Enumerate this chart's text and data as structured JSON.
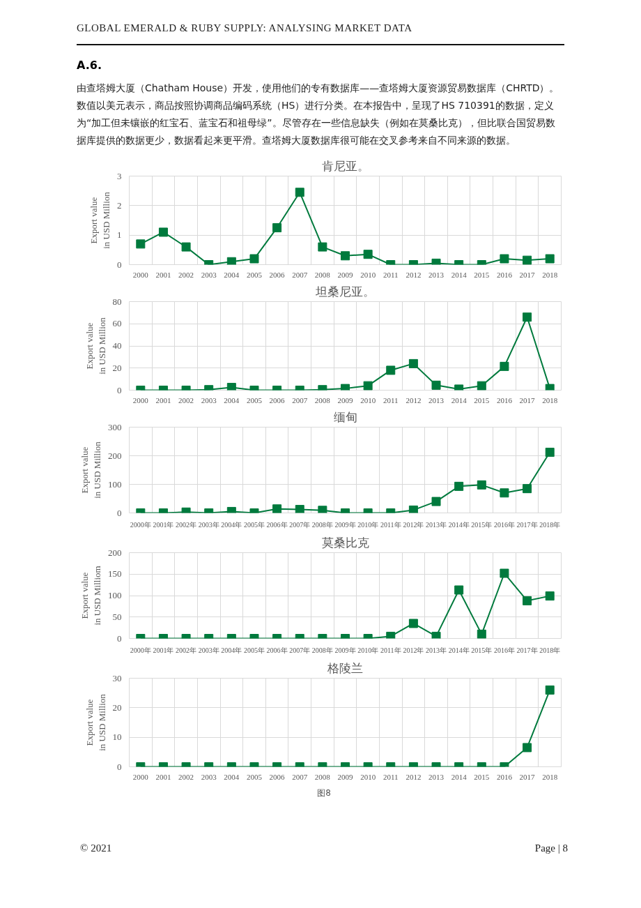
{
  "chart_data": [
    {
      "type": "line",
      "title": "肯尼亚。",
      "ylabel": "Export value in USD Million",
      "categories": [
        "2000",
        "2001",
        "2002",
        "2003",
        "2004",
        "2005",
        "2006",
        "2007",
        "2008",
        "2009",
        "2010",
        "2011",
        "2012",
        "2013",
        "2014",
        "2015",
        "2016",
        "2017",
        "2018"
      ],
      "series": [
        {
          "color": "#007a3d",
          "values": [
            0.7,
            1.1,
            0.6,
            0,
            0.1,
            0.2,
            1.25,
            2.45,
            0.6,
            0.3,
            0.35,
            0,
            0,
            0.05,
            0,
            0,
            0.2,
            0.15,
            0.2
          ]
        }
      ],
      "ylim": [
        0,
        3
      ],
      "yticks": [
        0,
        1,
        2,
        3
      ],
      "grid": true,
      "marker": "square",
      "line_style": "solid",
      "annotations": [
        "GLOBAL EMERALD & RUBY SUPPLY: ANALYSING MARKET DATA",
        "A.6.",
        "由查塔姆大厦（Chatham House）开发，使用他们的专有数据库——查塔姆大厦资源贸易数据库（CHRTD）。数值以美元表示，商品按照协调商品编码系统（HS）进行分类。在本报告中，呈现了HS 710391的数据，定义为“加工但未镶嵌的红宝石、蓝宝石和祖母绿”。尽管存在一些信息缺失（例如在莫桑比克），但比联合国贸易数据库提供的数据更少，数据看起来更平滑。查塔姆大厦数据库很可能在交叉参考来自不同来源的数据。"
      ]
    },
    {
      "type": "line",
      "title": "坦桑尼亚。",
      "ylabel": "Export value in USD Million",
      "categories": [
        "2000",
        "2001",
        "2002",
        "2003",
        "2004",
        "2005",
        "2006",
        "2007",
        "2008",
        "2009",
        "2010",
        "2011",
        "2012",
        "2013",
        "2014",
        "2015",
        "2016",
        "2017",
        "2018"
      ],
      "series": [
        {
          "color": "#007a3d",
          "values": [
            0,
            0,
            0,
            0.5,
            2.5,
            0,
            0,
            0,
            0.5,
            1.5,
            4,
            18,
            24,
            4.5,
            1,
            4,
            21.5,
            66,
            1.5
          ]
        }
      ],
      "ylim": [
        0,
        80
      ],
      "yticks": [
        0,
        20,
        40,
        60,
        80
      ],
      "grid": true,
      "marker": "square",
      "line_style": "solid"
    },
    {
      "type": "line",
      "title": "缅甸",
      "ylabel": "Export value in USD Million",
      "categories": [
        "2000年",
        "2001年",
        "2002年",
        "2003年",
        "2004年",
        "2005年",
        "2006年",
        "2007年",
        "2008年",
        "2009年",
        "2010年",
        "2011年",
        "2012年",
        "2013年",
        "2014年",
        "2015年",
        "2016年",
        "2017年",
        "2018年"
      ],
      "series": [
        {
          "color": "#007a3d",
          "values": [
            0,
            0,
            3,
            0,
            5,
            0,
            14,
            12,
            9,
            0,
            0,
            0,
            10,
            40,
            93,
            98,
            70,
            85,
            212
          ]
        }
      ],
      "ylim": [
        0,
        300
      ],
      "yticks": [
        0,
        100,
        200,
        300
      ],
      "grid": true,
      "marker": "square",
      "line_style": "solid"
    },
    {
      "type": "line",
      "title": "莫桑比克",
      "ylabel": "Export value in USD Milliom",
      "categories": [
        "2000年",
        "2001年",
        "2002年",
        "2003年",
        "2004年",
        "2005年",
        "2006年",
        "2007年",
        "2008年",
        "2009年",
        "2010年",
        "2011年",
        "2012年",
        "2013年",
        "2014年",
        "2015年",
        "2016年",
        "2017年",
        "2018年"
      ],
      "series": [
        {
          "color": "#007a3d",
          "values": [
            0,
            0,
            0,
            0,
            0,
            0,
            0,
            0,
            0,
            0,
            0,
            5,
            35,
            5,
            113,
            10,
            152,
            88,
            99
          ]
        }
      ],
      "ylim": [
        0,
        200
      ],
      "yticks": [
        0,
        50,
        100,
        150,
        200
      ],
      "grid": true,
      "marker": "square",
      "line_style": "solid"
    },
    {
      "type": "line",
      "title": "格陵兰",
      "ylabel": "Export value in USD Million",
      "categories": [
        "2000",
        "2001",
        "2002",
        "2003",
        "2004",
        "2005",
        "2006",
        "2007",
        "2008",
        "2009",
        "2010",
        "2011",
        "2012",
        "2013",
        "2014",
        "2015",
        "2016",
        "2017",
        "2018"
      ],
      "series": [
        {
          "color": "#007a3d",
          "values": [
            0,
            0,
            0,
            0,
            0,
            0,
            0,
            0,
            0,
            0,
            0,
            0,
            0,
            0,
            0,
            0,
            0,
            6.5,
            26
          ]
        }
      ],
      "ylim": [
        0,
        30
      ],
      "yticks": [
        0,
        10,
        20,
        30
      ],
      "grid": true,
      "marker": "square",
      "line_style": "solid",
      "annotations": [
        "图8",
        "© 2021",
        "Page | 8"
      ]
    }
  ]
}
